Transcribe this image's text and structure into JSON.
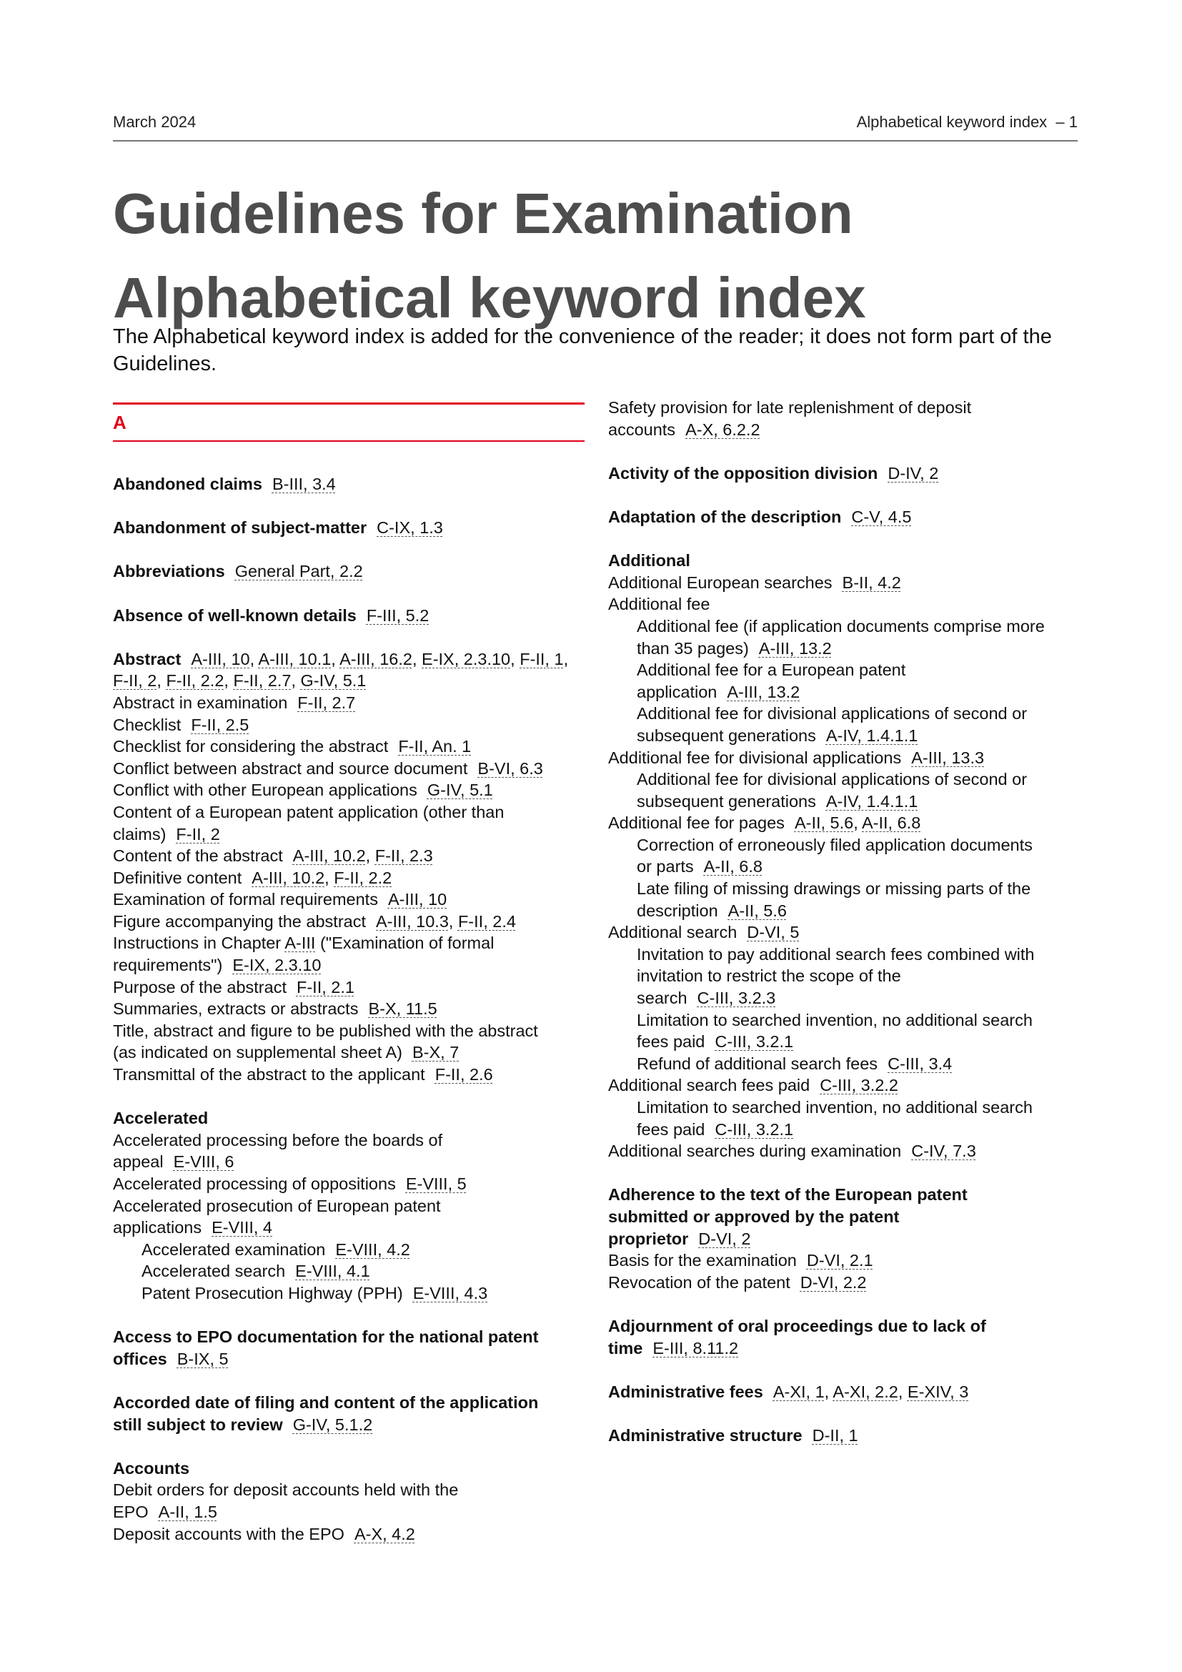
{
  "header": {
    "date": "March 2024",
    "running_title": "Alphabetical keyword index  – 1"
  },
  "title": {
    "line1": "Guidelines for Examination",
    "line2": "Alphabetical keyword index"
  },
  "intro": "The Alphabetical keyword index is added for the convenience of the reader; it does not form part of the Guidelines.",
  "section_letter": "A",
  "left": {
    "e1": {
      "kw": "Abandoned claims",
      "r1": "B-III, 3.4"
    },
    "e2": {
      "kw": "Abandonment of subject-matter",
      "r1": "C-IX, 1.3"
    },
    "e3": {
      "kw": "Abbreviations",
      "r1": "General Part, 2.2"
    },
    "e4": {
      "kw": "Absence of well-known details",
      "r1": "F-III, 5.2"
    },
    "abstract": {
      "kw": "Abstract",
      "refs": [
        "A-III, 10",
        "A-III, 10.1",
        "A-III, 16.2",
        "E-IX, 2.3.10",
        "F-II, 1",
        "F-II, 2",
        "F-II, 2.2",
        "F-II, 2.7",
        "G-IV, 5.1"
      ],
      "s1": {
        "t": "Abstract in examination",
        "r1": "F-II, 2.7"
      },
      "s2": {
        "t": "Checklist",
        "r1": "F-II, 2.5"
      },
      "s3": {
        "t": "Checklist for considering the abstract",
        "r1": "F-II, An. 1"
      },
      "s4": {
        "t": "Conflict between abstract and source document",
        "r1": "B-VI, 6.3"
      },
      "s5": {
        "t": "Conflict with other European applications",
        "r1": "G-IV, 5.1"
      },
      "s6": {
        "t": "Content of a European patent application (other than",
        "t2": "claims)",
        "r1": "F-II, 2"
      },
      "s7": {
        "t": "Content of the abstract",
        "r1": "A-III, 10.2",
        "r2": "F-II, 2.3"
      },
      "s8": {
        "t": "Definitive content",
        "r1": "A-III, 10.2",
        "r2": "F-II, 2.2"
      },
      "s9": {
        "t": "Examination of formal requirements",
        "r1": "A-III, 10"
      },
      "s10": {
        "t": "Figure accompanying the abstract",
        "r1": "A-III, 10.3",
        "r2": "F-II, 2.4"
      },
      "s11": {
        "t": "Instructions in Chapter",
        "link": "A-III",
        "t2": " (\"Examination of formal",
        "t3": "requirements\")",
        "r1": "E-IX, 2.3.10"
      },
      "s12": {
        "t": "Purpose of the abstract",
        "r1": "F-II, 2.1"
      },
      "s13": {
        "t": "Summaries, extracts or abstracts",
        "r1": "B-X, 11.5"
      },
      "s14": {
        "t": "Title, abstract and figure to be published with the abstract",
        "t2": "(as indicated on supplemental sheet A)",
        "r1": "B-X, 7"
      },
      "s15": {
        "t": "Transmittal of the abstract to the applicant",
        "r1": "F-II, 2.6"
      }
    },
    "accelerated": {
      "kw": "Accelerated",
      "s1": {
        "t": "Accelerated processing before the boards of",
        "t2": "appeal",
        "r1": "E-VIII, 6"
      },
      "s2": {
        "t": "Accelerated processing of oppositions",
        "r1": "E-VIII, 5"
      },
      "s3": {
        "t": "Accelerated prosecution of European patent",
        "t2": "applications",
        "r1": "E-VIII, 4"
      },
      "s4": {
        "t": "Accelerated examination",
        "r1": "E-VIII, 4.2"
      },
      "s5": {
        "t": "Accelerated search",
        "r1": "E-VIII, 4.1"
      },
      "s6": {
        "t": "Patent Prosecution Highway (PPH)",
        "r1": "E-VIII, 4.3"
      }
    },
    "e5": {
      "kw": "Access to EPO documentation for the national patent",
      "kw2": "offices",
      "r1": "B-IX, 5"
    },
    "e6": {
      "kw": "Accorded date of filing and content of the application",
      "kw2": "still subject to review",
      "r1": "G-IV, 5.1.2"
    },
    "accounts": {
      "kw": "Accounts",
      "s1": {
        "t": "Debit orders for deposit accounts held with the",
        "t2": "EPO",
        "r1": "A-II, 1.5"
      },
      "s2": {
        "t": "Deposit accounts with the EPO",
        "r1": "A-X, 4.2"
      }
    }
  },
  "right": {
    "cont": {
      "t": "Safety provision for late replenishment of deposit",
      "t2": "accounts",
      "r1": "A-X, 6.2.2"
    },
    "e1": {
      "kw": "Activity of the opposition division",
      "r1": "D-IV, 2"
    },
    "e2": {
      "kw": "Adaptation of the description",
      "r1": "C-V, 4.5"
    },
    "additional": {
      "kw": "Additional",
      "s1": {
        "t": "Additional European searches",
        "r1": "B-II, 4.2"
      },
      "s2": {
        "t": "Additional fee"
      },
      "s2a": {
        "t": "Additional fee (if application documents comprise more",
        "t2": "than 35 pages)",
        "r1": "A-III, 13.2"
      },
      "s2b": {
        "t": "Additional fee for a European patent",
        "t2": "application",
        "r1": "A-III, 13.2"
      },
      "s2c": {
        "t": "Additional fee for divisional applications of second or",
        "t2": "subsequent generations",
        "r1": "A-IV, 1.4.1.1"
      },
      "s3": {
        "t": "Additional fee for divisional applications",
        "r1": "A-III, 13.3"
      },
      "s3a": {
        "t": "Additional fee for divisional applications of second or",
        "t2": "subsequent generations",
        "r1": "A-IV, 1.4.1.1"
      },
      "s4": {
        "t": "Additional fee for pages",
        "r1": "A-II, 5.6",
        "r2": "A-II, 6.8"
      },
      "s4a": {
        "t": "Correction of erroneously filed application documents",
        "t2": "or parts",
        "r1": "A-II, 6.8"
      },
      "s4b": {
        "t": "Late filing of missing drawings or missing parts of the",
        "t2": "description",
        "r1": "A-II, 5.6"
      },
      "s5": {
        "t": "Additional search",
        "r1": "D-VI, 5"
      },
      "s5a": {
        "t": "Invitation to pay additional search fees combined with",
        "t2": "invitation to restrict the scope of the",
        "t3": "search",
        "r1": "C-III, 3.2.3"
      },
      "s5b": {
        "t": "Limitation to searched invention, no additional search",
        "t2": "fees paid",
        "r1": "C-III, 3.2.1"
      },
      "s5c": {
        "t": "Refund of additional search fees",
        "r1": "C-III, 3.4"
      },
      "s6": {
        "t": "Additional search fees paid",
        "r1": "C-III, 3.2.2"
      },
      "s6a": {
        "t": "Limitation to searched invention, no additional search",
        "t2": "fees paid",
        "r1": "C-III, 3.2.1"
      },
      "s7": {
        "t": "Additional searches during examination",
        "r1": "C-IV, 7.3"
      }
    },
    "adherence": {
      "kw": "Adherence to the text of the European patent",
      "kw2": "submitted or approved by the patent",
      "kw3": "proprietor",
      "r1": "D-VI, 2",
      "s1": {
        "t": "Basis for the examination",
        "r1": "D-VI, 2.1"
      },
      "s2": {
        "t": "Revocation of the patent",
        "r1": "D-VI, 2.2"
      }
    },
    "e3": {
      "kw": "Adjournment of oral proceedings due to lack of",
      "kw2": "time",
      "r1": "E-III, 8.11.2"
    },
    "e4": {
      "kw": "Administrative fees",
      "r1": "A-XI, 1",
      "r2": "A-XI, 2.2",
      "r3": "E-XIV, 3"
    },
    "e5": {
      "kw": "Administrative structure",
      "r1": "D-II, 1"
    }
  }
}
